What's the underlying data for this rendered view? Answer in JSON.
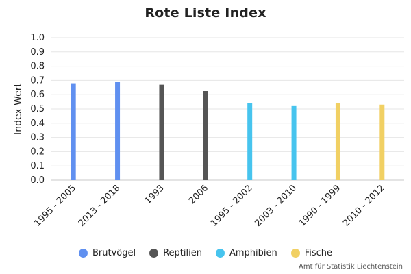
{
  "chart_data": {
    "type": "bar",
    "title": "Rote Liste Index",
    "xlabel": "",
    "ylabel": "Index Wert",
    "ylim": [
      0,
      1.0
    ],
    "yticks": [
      "0.0",
      "0.1",
      "0.2",
      "0.3",
      "0.4",
      "0.5",
      "0.6",
      "0.7",
      "0.8",
      "0.9",
      "1.0"
    ],
    "categories": [
      "1995 - 2005",
      "2013 - 2018",
      "1993",
      "2006",
      "1995 - 2002",
      "2003 - 2010",
      "1990 - 1999",
      "2010 - 2012"
    ],
    "values": [
      0.68,
      0.69,
      0.67,
      0.625,
      0.54,
      0.52,
      0.54,
      0.53
    ],
    "groups": [
      "Brutvögel",
      "Brutvögel",
      "Reptilien",
      "Reptilien",
      "Amphibien",
      "Amphibien",
      "Fische",
      "Fische"
    ],
    "grid": true,
    "legend_position": "bottom",
    "legend": [
      {
        "name": "Brutvögel",
        "color": "#6090f0"
      },
      {
        "name": "Reptilien",
        "color": "#555555"
      },
      {
        "name": "Amphibien",
        "color": "#47c4ee"
      },
      {
        "name": "Fische",
        "color": "#f1d063"
      }
    ]
  },
  "credit": "Amt für Statistik Liechtenstein"
}
